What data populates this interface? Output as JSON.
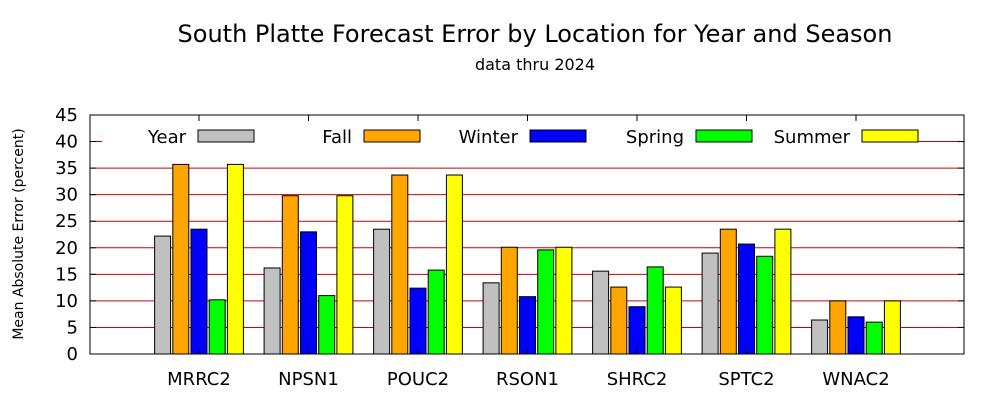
{
  "chart_data": {
    "type": "bar",
    "title": "South Platte Forecast Error by Location for Year and Season",
    "subtitle": "data thru 2024",
    "xlabel": "",
    "ylabel": "Mean Absolute Error (percent)",
    "ylim": [
      0,
      45
    ],
    "yticks": [
      0,
      5,
      10,
      15,
      20,
      25,
      30,
      35,
      40,
      45
    ],
    "grid": "horizontal",
    "legend_position": "top",
    "categories": [
      "MRRC2",
      "NPSN1",
      "POUC2",
      "RSON1",
      "SHRC2",
      "SPTC2",
      "WNAC2"
    ],
    "series": [
      {
        "name": "Year",
        "color": "#c0c0c0",
        "values": [
          22.2,
          16.2,
          23.5,
          13.4,
          15.6,
          19.0,
          6.4
        ]
      },
      {
        "name": "Fall",
        "color": "#ffa500",
        "values": [
          35.7,
          29.8,
          33.7,
          20.1,
          12.6,
          23.5,
          10.0
        ]
      },
      {
        "name": "Winter",
        "color": "#0000ff",
        "values": [
          23.5,
          23.0,
          12.4,
          10.8,
          8.9,
          20.7,
          7.0
        ]
      },
      {
        "name": "Spring",
        "color": "#00ff00",
        "values": [
          10.2,
          11.0,
          15.8,
          19.6,
          16.4,
          18.4,
          6.0
        ]
      },
      {
        "name": "Summer",
        "color": "#ffff00",
        "values": [
          35.7,
          29.8,
          33.7,
          20.1,
          12.6,
          23.5,
          10.0
        ]
      }
    ],
    "colors": {
      "grid": "#cc0000",
      "axis": "#000000",
      "bar_border": "#000000"
    }
  }
}
